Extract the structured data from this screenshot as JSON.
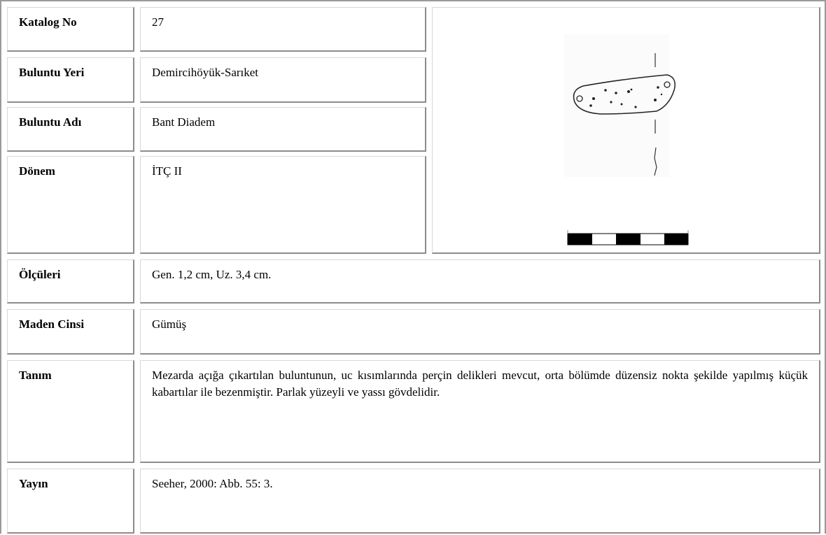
{
  "table": {
    "rows": [
      {
        "label": "Katalog No",
        "value": "27"
      },
      {
        "label": "Buluntu Yeri",
        "value": "Demircihöyük-Sarıket"
      },
      {
        "label": "Buluntu Adı",
        "value": "Bant Diadem"
      },
      {
        "label": "Dönem",
        "value": "İTÇ II"
      },
      {
        "label": "Ölçüleri",
        "value": "Gen. 1,2 cm, Uz. 3,4 cm."
      },
      {
        "label": "Maden Cinsi",
        "value": "Gümüş"
      },
      {
        "label": "Tanım",
        "value": "Mezarda açığa çıkartılan buluntunun, uc kısımlarında perçin delikleri mevcut, orta bölümde düzensiz nokta şekilde yapılmış küçük kabartılar ile bezenmiştir. Parlak yüzeyli ve yassı gövdelidir."
      },
      {
        "label": "Yayın",
        "value": "Seeher, 2000: Abb. 55: 3."
      }
    ]
  }
}
